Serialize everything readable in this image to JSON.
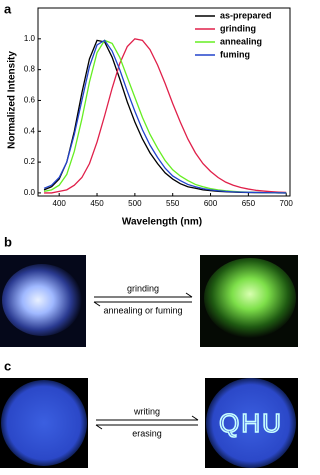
{
  "chart_data": {
    "type": "line",
    "xlabel": "Wavelength (nm)",
    "ylabel": "Normalized Intensity",
    "x": [
      380,
      390,
      400,
      410,
      420,
      430,
      440,
      450,
      460,
      470,
      480,
      490,
      500,
      510,
      520,
      530,
      540,
      550,
      560,
      570,
      580,
      590,
      600,
      610,
      620,
      630,
      640,
      650,
      660,
      670,
      680,
      690,
      700
    ],
    "series": [
      {
        "name": "as-prepared",
        "color": "#000000",
        "values": [
          0.02,
          0.04,
          0.09,
          0.2,
          0.4,
          0.65,
          0.87,
          0.99,
          0.98,
          0.88,
          0.74,
          0.59,
          0.46,
          0.35,
          0.26,
          0.19,
          0.13,
          0.09,
          0.06,
          0.04,
          0.03,
          0.02,
          0.015,
          0.01,
          0.008,
          0.005,
          0.004,
          0.003,
          0.002,
          0.001,
          0.001,
          0,
          0
        ]
      },
      {
        "name": "grinding",
        "color": "#e0204a",
        "values": [
          0,
          0,
          0.01,
          0.02,
          0.05,
          0.1,
          0.19,
          0.33,
          0.5,
          0.68,
          0.84,
          0.95,
          1.0,
          0.99,
          0.93,
          0.83,
          0.71,
          0.58,
          0.46,
          0.35,
          0.26,
          0.19,
          0.14,
          0.1,
          0.07,
          0.05,
          0.035,
          0.025,
          0.017,
          0.012,
          0.008,
          0.005,
          0.003
        ]
      },
      {
        "name": "annealing",
        "color": "#66ee22",
        "values": [
          0.01,
          0.02,
          0.05,
          0.12,
          0.27,
          0.48,
          0.72,
          0.91,
          0.99,
          0.97,
          0.88,
          0.75,
          0.62,
          0.49,
          0.38,
          0.29,
          0.21,
          0.15,
          0.11,
          0.08,
          0.055,
          0.04,
          0.028,
          0.02,
          0.014,
          0.01,
          0.007,
          0.005,
          0.003,
          0.002,
          0.001,
          0.001,
          0
        ]
      },
      {
        "name": "fuming",
        "color": "#2244cc",
        "values": [
          0.03,
          0.05,
          0.1,
          0.2,
          0.38,
          0.6,
          0.82,
          0.96,
          0.99,
          0.92,
          0.8,
          0.66,
          0.53,
          0.41,
          0.31,
          0.23,
          0.16,
          0.11,
          0.08,
          0.055,
          0.04,
          0.028,
          0.02,
          0.014,
          0.01,
          0.007,
          0.005,
          0.004,
          0.003,
          0.002,
          0.001,
          0.001,
          0
        ]
      }
    ],
    "xlim": [
      372,
      705
    ],
    "ylim": [
      -0.02,
      1.2
    ],
    "xticks": [
      400,
      450,
      500,
      550,
      600,
      650,
      700
    ],
    "yticks": [
      {
        "value": 0,
        "label": "0.0"
      },
      0.2,
      0.4,
      0.6,
      0.8,
      {
        "value": 1,
        "label": "1.0"
      }
    ],
    "legend": "upper right",
    "grid": false
  },
  "panel_labels": [
    "a",
    "b",
    "c"
  ],
  "panel_b": {
    "forward": "grinding",
    "reverse": "annealing or fuming"
  },
  "panel_c": {
    "forward": "writing",
    "reverse": "erasing",
    "photo_text": "QHU"
  }
}
